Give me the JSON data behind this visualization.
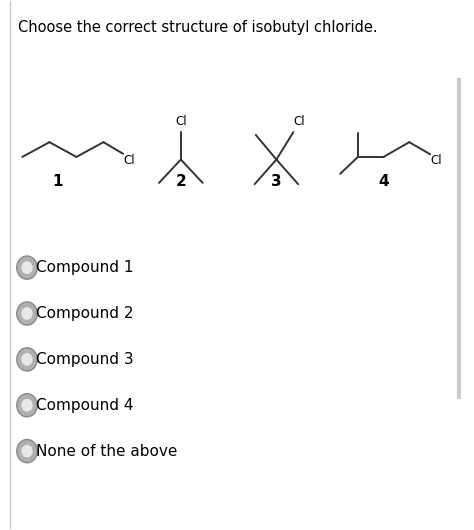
{
  "title": "Choose the correct structure of isobutyl chloride.",
  "background_color": "#ffffff",
  "text_color": "#000000",
  "radio_options": [
    "Compound 1",
    "Compound 2",
    "Compound 3",
    "Compound 4",
    "None of the above"
  ],
  "compound_labels": [
    "1",
    "2",
    "3",
    "4"
  ],
  "border_color": "#cccccc",
  "radio_fill_color": "#aaaaaa",
  "radio_edge_color": "#888888",
  "line_color": "#333333"
}
